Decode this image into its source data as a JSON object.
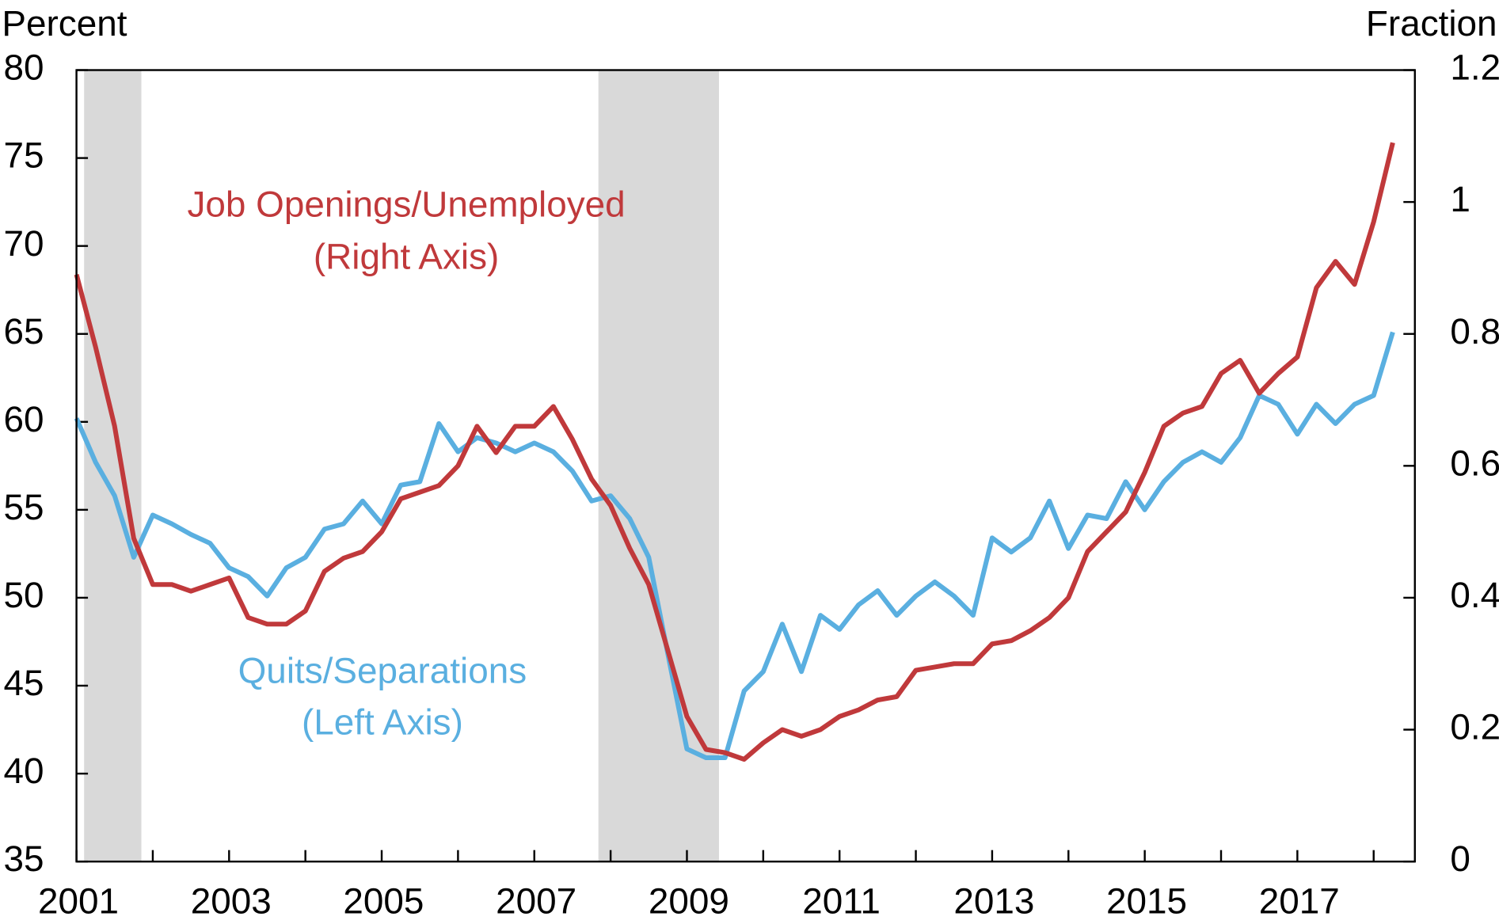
{
  "chart_data": {
    "type": "line",
    "y_label": "Percent",
    "y2_label": "Fraction",
    "annotations": [
      {
        "text": "Job Openings/Unemployed",
        "color": "#c0393b"
      },
      {
        "text": "(Right Axis)",
        "color": "#c0393b"
      },
      {
        "text": "Quits/Separations",
        "color": "#5aafe0"
      },
      {
        "text": "(Left Axis)",
        "color": "#5aafe0"
      }
    ],
    "recessions": [
      [
        2001.1,
        2001.85
      ],
      [
        2007.84,
        2009.42
      ]
    ],
    "x": [
      2001,
      2001.25,
      2001.5,
      2001.75,
      2002,
      2002.25,
      2002.5,
      2002.75,
      2003,
      2003.25,
      2003.5,
      2003.75,
      2004,
      2004.25,
      2004.5,
      2004.75,
      2005,
      2005.25,
      2005.5,
      2005.75,
      2006,
      2006.25,
      2006.5,
      2006.75,
      2007,
      2007.25,
      2007.5,
      2007.75,
      2008,
      2008.25,
      2008.5,
      2008.75,
      2009,
      2009.25,
      2009.5,
      2009.75,
      2010,
      2010.25,
      2010.5,
      2010.75,
      2011,
      2011.25,
      2011.5,
      2011.75,
      2012,
      2012.25,
      2012.5,
      2012.75,
      2013,
      2013.25,
      2013.5,
      2013.75,
      2014,
      2014.25,
      2014.5,
      2014.75,
      2015,
      2015.25,
      2015.5,
      2015.75,
      2016,
      2016.25,
      2016.5,
      2016.75,
      2017,
      2017.25,
      2017.5,
      2017.75,
      2018,
      2018.25
    ],
    "series": [
      {
        "name": "Quits/Separations",
        "color": "#5aafe0",
        "axis": "y",
        "values": [
          60.2,
          57.7,
          55.8,
          52.3,
          54.7,
          54.2,
          53.6,
          53.1,
          51.7,
          51.2,
          50.1,
          51.7,
          52.3,
          53.9,
          54.2,
          55.5,
          54.2,
          56.4,
          56.6,
          59.9,
          58.3,
          59.1,
          58.8,
          58.3,
          58.8,
          58.3,
          57.2,
          55.5,
          55.8,
          54.5,
          52.3,
          46.8,
          41.4,
          40.9,
          40.9,
          44.7,
          45.8,
          48.5,
          45.8,
          49.0,
          48.2,
          49.6,
          50.4,
          49.0,
          50.1,
          50.9,
          50.1,
          49.0,
          53.4,
          52.6,
          53.4,
          55.5,
          52.8,
          54.7,
          54.5,
          56.6,
          55.0,
          56.6,
          57.7,
          58.3,
          57.7,
          59.1,
          61.5,
          61.0,
          59.3,
          61.0,
          59.9,
          61.0,
          61.5,
          65.1
        ]
      },
      {
        "name": "Job Openings/Unemployed",
        "color": "#c0393b",
        "axis": "y2",
        "values": [
          0.89,
          0.78,
          0.66,
          0.49,
          0.42,
          0.42,
          0.41,
          0.42,
          0.43,
          0.37,
          0.36,
          0.36,
          0.38,
          0.44,
          0.46,
          0.47,
          0.5,
          0.55,
          0.56,
          0.57,
          0.6,
          0.66,
          0.62,
          0.66,
          0.66,
          0.69,
          0.64,
          0.58,
          0.54,
          0.475,
          0.42,
          0.32,
          0.22,
          0.17,
          0.165,
          0.155,
          0.18,
          0.2,
          0.19,
          0.2,
          0.22,
          0.23,
          0.245,
          0.25,
          0.29,
          0.295,
          0.3,
          0.3,
          0.33,
          0.335,
          0.35,
          0.37,
          0.4,
          0.47,
          0.5,
          0.53,
          0.59,
          0.66,
          0.68,
          0.69,
          0.74,
          0.76,
          0.71,
          0.74,
          0.765,
          0.87,
          0.91,
          0.875,
          0.97,
          1.09
        ]
      }
    ],
    "xlim": [
      2001,
      2018.54
    ],
    "xticks": [
      2001,
      2003,
      2005,
      2007,
      2009,
      2011,
      2013,
      2015,
      2017
    ],
    "xminorticks": [
      2002,
      2004,
      2006,
      2008,
      2010,
      2012,
      2014,
      2016,
      2018
    ],
    "ylim": [
      35,
      80
    ],
    "yticks": [
      35,
      40,
      45,
      50,
      55,
      60,
      65,
      70,
      75,
      80
    ],
    "y2lim": [
      0,
      1.2
    ],
    "y2ticks": [
      0,
      0.2,
      0.4,
      0.6,
      0.8,
      1,
      1.2
    ],
    "recession_color": "#d9d9d9"
  }
}
